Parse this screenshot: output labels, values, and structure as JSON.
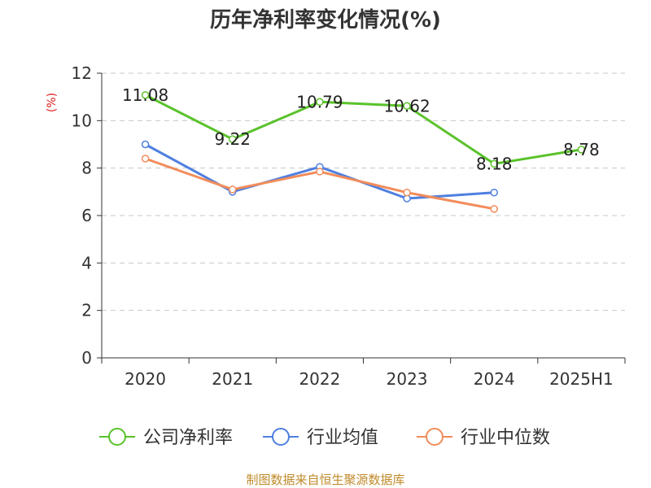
{
  "chart_data": {
    "type": "line",
    "title": "历年净利率变化情况(%)",
    "ylabel": "(%)",
    "xlabel": "",
    "categories": [
      "2020",
      "2021",
      "2022",
      "2023",
      "2024",
      "2025H1"
    ],
    "ylim": [
      0,
      12
    ],
    "yticks": [
      0,
      2,
      4,
      6,
      8,
      10,
      12
    ],
    "grid": true,
    "legend_position": "bottom",
    "series": [
      {
        "name": "公司净利率",
        "color": "#5ac22b",
        "values": [
          11.08,
          9.22,
          10.79,
          10.62,
          8.18,
          8.78
        ],
        "labels": [
          "11.08",
          "9.22",
          "10.79",
          "10.62",
          "8.18",
          "8.78"
        ]
      },
      {
        "name": "行业均值",
        "color": "#4f7fe0",
        "values": [
          9.0,
          7.0,
          8.05,
          6.72,
          6.97,
          null
        ]
      },
      {
        "name": "行业中位数",
        "color": "#f28c5a",
        "values": [
          8.4,
          7.1,
          7.85,
          6.97,
          6.28,
          null
        ]
      }
    ],
    "source": "制图数据来自恒生聚源数据库"
  }
}
